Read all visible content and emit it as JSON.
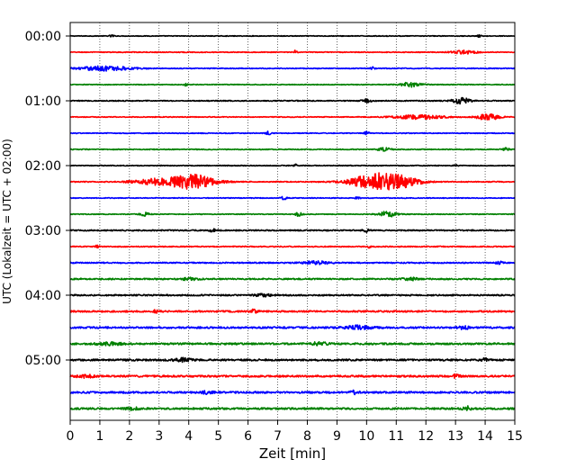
{
  "chart_data": {
    "type": "line",
    "title": "",
    "xlabel": "Zeit  [min]",
    "ylabel": "UTC (Lokalzeit = UTC + 02:00)",
    "xlim": [
      0,
      15
    ],
    "x_ticks": [
      0,
      1,
      2,
      3,
      4,
      5,
      6,
      7,
      8,
      9,
      10,
      11,
      12,
      13,
      14,
      15
    ],
    "y_tick_labels": [
      "00:00",
      "01:00",
      "02:00",
      "03:00",
      "04:00",
      "05:00"
    ],
    "y_tick_trace_index": [
      0,
      4,
      8,
      12,
      16,
      20
    ],
    "trace_interval_minutes": 15,
    "grid": "vertical dotted lines at each minute",
    "color_cycle": [
      "#000000",
      "#ff0000",
      "#0000ff",
      "#008000"
    ],
    "traces": [
      {
        "start": "00:00",
        "color": "#000000",
        "noise": 0.18,
        "bursts": [
          {
            "t": 1.4,
            "amp": 0.7,
            "w": 0.05
          },
          {
            "t": 13.8,
            "amp": 0.5,
            "w": 0.05
          }
        ]
      },
      {
        "start": "00:15",
        "color": "#ff0000",
        "noise": 0.2,
        "bursts": [
          {
            "t": 7.6,
            "amp": 1.0,
            "w": 0.04
          },
          {
            "t": 13.3,
            "amp": 0.9,
            "w": 0.3
          }
        ]
      },
      {
        "start": "00:30",
        "color": "#0000ff",
        "noise": 0.22,
        "bursts": [
          {
            "t": 1.2,
            "amp": 1.2,
            "w": 0.6
          },
          {
            "t": 10.2,
            "amp": 0.7,
            "w": 0.05
          }
        ]
      },
      {
        "start": "00:45",
        "color": "#008000",
        "noise": 0.2,
        "bursts": [
          {
            "t": 11.5,
            "amp": 1.1,
            "w": 0.25
          },
          {
            "t": 3.9,
            "amp": 0.6,
            "w": 0.05
          }
        ]
      },
      {
        "start": "01:00",
        "color": "#000000",
        "noise": 0.25,
        "bursts": [
          {
            "t": 10.0,
            "amp": 1.0,
            "w": 0.1
          },
          {
            "t": 13.2,
            "amp": 1.5,
            "w": 0.2
          }
        ]
      },
      {
        "start": "01:15",
        "color": "#ff0000",
        "noise": 0.2,
        "bursts": [
          {
            "t": 11.8,
            "amp": 1.0,
            "w": 0.6
          },
          {
            "t": 14.1,
            "amp": 1.4,
            "w": 0.3
          }
        ]
      },
      {
        "start": "01:30",
        "color": "#0000ff",
        "noise": 0.2,
        "bursts": [
          {
            "t": 6.7,
            "amp": 1.0,
            "w": 0.06
          },
          {
            "t": 10.0,
            "amp": 1.2,
            "w": 0.06
          }
        ]
      },
      {
        "start": "01:45",
        "color": "#008000",
        "noise": 0.22,
        "bursts": [
          {
            "t": 10.6,
            "amp": 0.8,
            "w": 0.15
          },
          {
            "t": 14.7,
            "amp": 0.7,
            "w": 0.08
          }
        ]
      },
      {
        "start": "02:00",
        "color": "#000000",
        "noise": 0.2,
        "bursts": [
          {
            "t": 7.6,
            "amp": 0.8,
            "w": 0.05
          },
          {
            "t": 13.0,
            "amp": 0.7,
            "w": 0.05
          }
        ]
      },
      {
        "start": "02:15",
        "color": "#ff0000",
        "noise": 0.25,
        "bursts": [
          {
            "t": 4.2,
            "amp": 3.5,
            "w": 0.5
          },
          {
            "t": 3.0,
            "amp": 1.5,
            "w": 0.6
          },
          {
            "t": 10.4,
            "amp": 4.5,
            "w": 0.6
          },
          {
            "t": 11.3,
            "amp": 1.5,
            "w": 0.4
          }
        ]
      },
      {
        "start": "02:30",
        "color": "#0000ff",
        "noise": 0.2,
        "bursts": [
          {
            "t": 7.2,
            "amp": 1.0,
            "w": 0.06
          },
          {
            "t": 9.7,
            "amp": 0.6,
            "w": 0.06
          }
        ]
      },
      {
        "start": "02:45",
        "color": "#008000",
        "noise": 0.2,
        "bursts": [
          {
            "t": 2.5,
            "amp": 1.0,
            "w": 0.1
          },
          {
            "t": 7.7,
            "amp": 0.9,
            "w": 0.08
          },
          {
            "t": 10.7,
            "amp": 1.4,
            "w": 0.2
          }
        ]
      },
      {
        "start": "03:00",
        "color": "#000000",
        "noise": 0.3,
        "bursts": [
          {
            "t": 10.0,
            "amp": 1.0,
            "w": 0.08
          },
          {
            "t": 4.8,
            "amp": 0.7,
            "w": 0.08
          }
        ]
      },
      {
        "start": "03:15",
        "color": "#ff0000",
        "noise": 0.25,
        "bursts": [
          {
            "t": 0.9,
            "amp": 0.6,
            "w": 0.05
          },
          {
            "t": 10.1,
            "amp": 0.6,
            "w": 0.05
          }
        ]
      },
      {
        "start": "03:30",
        "color": "#0000ff",
        "noise": 0.3,
        "bursts": [
          {
            "t": 8.3,
            "amp": 0.8,
            "w": 0.3
          },
          {
            "t": 14.5,
            "amp": 0.6,
            "w": 0.1
          }
        ]
      },
      {
        "start": "03:45",
        "color": "#008000",
        "noise": 0.35,
        "bursts": [
          {
            "t": 4.0,
            "amp": 0.6,
            "w": 0.2
          },
          {
            "t": 11.5,
            "amp": 0.6,
            "w": 0.2
          }
        ]
      },
      {
        "start": "04:00",
        "color": "#000000",
        "noise": 0.35,
        "bursts": [
          {
            "t": 6.5,
            "amp": 0.6,
            "w": 0.2
          }
        ]
      },
      {
        "start": "04:15",
        "color": "#ff0000",
        "noise": 0.4,
        "bursts": [
          {
            "t": 2.9,
            "amp": 0.6,
            "w": 0.1
          },
          {
            "t": 6.2,
            "amp": 0.8,
            "w": 0.1
          }
        ]
      },
      {
        "start": "04:30",
        "color": "#0000ff",
        "noise": 0.45,
        "bursts": [
          {
            "t": 9.7,
            "amp": 0.9,
            "w": 0.3
          },
          {
            "t": 13.3,
            "amp": 0.7,
            "w": 0.15
          }
        ]
      },
      {
        "start": "04:45",
        "color": "#008000",
        "noise": 0.45,
        "bursts": [
          {
            "t": 1.3,
            "amp": 0.7,
            "w": 0.3
          },
          {
            "t": 8.4,
            "amp": 0.7,
            "w": 0.2
          }
        ]
      },
      {
        "start": "05:00",
        "color": "#000000",
        "noise": 0.45,
        "bursts": [
          {
            "t": 3.8,
            "amp": 0.8,
            "w": 0.2
          },
          {
            "t": 14.0,
            "amp": 0.8,
            "w": 0.1
          }
        ]
      },
      {
        "start": "05:15",
        "color": "#ff0000",
        "noise": 0.45,
        "bursts": [
          {
            "t": 0.5,
            "amp": 0.7,
            "w": 0.2
          },
          {
            "t": 13.0,
            "amp": 0.7,
            "w": 0.1
          }
        ]
      },
      {
        "start": "05:30",
        "color": "#0000ff",
        "noise": 0.45,
        "bursts": [
          {
            "t": 9.6,
            "amp": 0.8,
            "w": 0.1
          },
          {
            "t": 4.6,
            "amp": 0.6,
            "w": 0.15
          }
        ]
      },
      {
        "start": "05:45",
        "color": "#008000",
        "noise": 0.45,
        "bursts": [
          {
            "t": 13.4,
            "amp": 1.0,
            "w": 0.1
          },
          {
            "t": 2.1,
            "amp": 0.6,
            "w": 0.15
          }
        ]
      }
    ]
  }
}
